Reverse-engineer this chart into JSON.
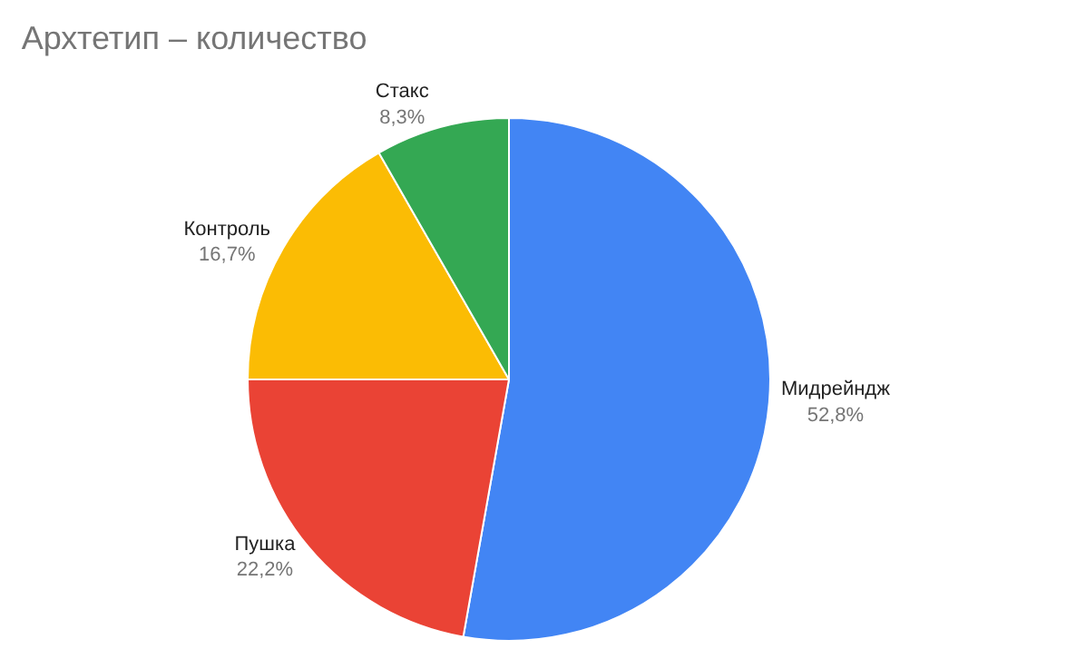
{
  "chart_data": {
    "type": "pie",
    "title": "Архтетип – количество",
    "categories": [
      "Мидрейндж",
      "Пушка",
      "Контроль",
      "Стакс"
    ],
    "values": [
      52.8,
      22.2,
      16.7,
      8.3
    ],
    "value_labels": [
      "52,8%",
      "22,2%",
      "16,7%",
      "8,3%"
    ],
    "colors": [
      "#4285f4",
      "#ea4335",
      "#fbbc04",
      "#34a853"
    ],
    "legend": false
  }
}
